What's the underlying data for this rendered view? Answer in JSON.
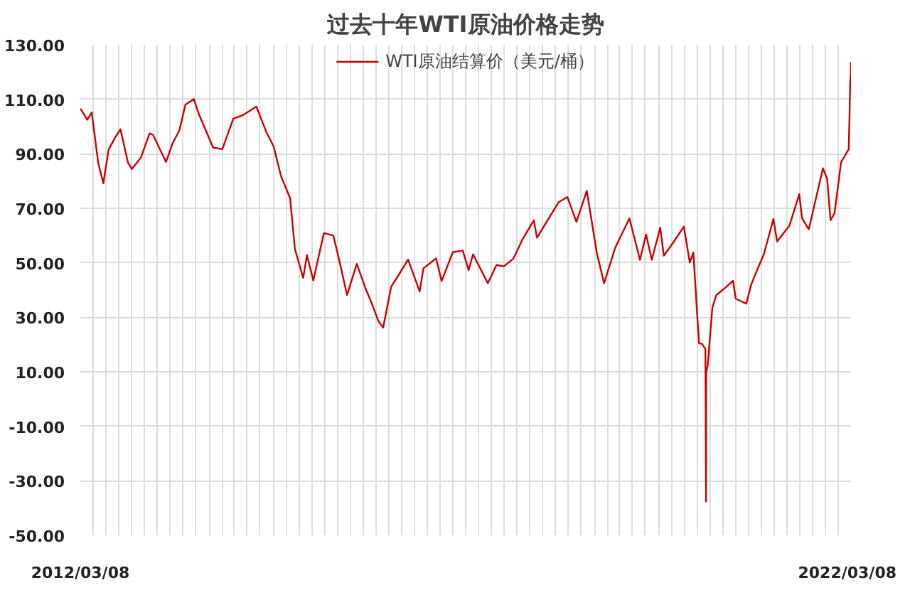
{
  "chart_data": {
    "type": "line",
    "title": "过去十年WTI原油价格走势",
    "x": [
      "2012-03-08",
      "2012-04-10",
      "2012-05-01",
      "2012-06-01",
      "2012-06-25",
      "2012-07-20",
      "2012-08-20",
      "2012-09-14",
      "2012-10-20",
      "2012-11-07",
      "2012-12-20",
      "2013-01-30",
      "2013-02-15",
      "2013-04-18",
      "2013-05-20",
      "2013-06-20",
      "2013-07-19",
      "2013-08-28",
      "2013-09-20",
      "2013-11-27",
      "2014-01-10",
      "2014-03-03",
      "2014-04-20",
      "2014-06-20",
      "2014-08-08",
      "2014-09-10",
      "2014-10-15",
      "2014-11-27",
      "2014-12-20",
      "2015-01-28",
      "2015-02-15",
      "2015-03-17",
      "2015-05-06",
      "2015-06-20",
      "2015-07-20",
      "2015-08-24",
      "2015-10-09",
      "2015-11-20",
      "2015-12-21",
      "2016-01-20",
      "2016-02-11",
      "2016-03-20",
      "2016-04-28",
      "2016-06-08",
      "2016-08-02",
      "2016-08-20",
      "2016-10-19",
      "2016-11-14",
      "2017-01-06",
      "2017-02-22",
      "2017-03-22",
      "2017-04-12",
      "2017-06-21",
      "2017-08-01",
      "2017-09-05",
      "2017-10-20",
      "2017-12-01",
      "2018-01-25",
      "2018-02-09",
      "2018-05-22",
      "2018-07-03",
      "2018-08-15",
      "2018-10-03",
      "2018-11-20",
      "2018-12-24",
      "2019-02-15",
      "2019-04-23",
      "2019-06-12",
      "2019-07-11",
      "2019-08-07",
      "2019-09-16",
      "2019-10-03",
      "2019-11-20",
      "2020-01-06",
      "2020-02-03",
      "2020-02-20",
      "2020-03-09",
      "2020-03-18",
      "2020-04-01",
      "2020-04-17",
      "2020-04-20",
      "2020-04-21",
      "2020-04-28",
      "2020-05-20",
      "2020-06-08",
      "2020-07-20",
      "2020-08-26",
      "2020-09-08",
      "2020-10-28",
      "2020-11-20",
      "2020-12-20",
      "2021-01-20",
      "2021-03-05",
      "2021-03-23",
      "2021-05-20",
      "2021-07-06",
      "2021-07-19",
      "2021-08-20",
      "2021-10-26",
      "2021-11-15",
      "2021-12-01",
      "2021-12-20",
      "2022-01-20",
      "2022-02-10",
      "2022-02-25",
      "2022-03-01",
      "2022-03-04",
      "2022-03-07",
      "2022-03-08"
    ],
    "series": [
      {
        "name": "WTI原油结算价（美元/桶）",
        "color": "#cc0000",
        "values": [
          106.6,
          102.5,
          105.2,
          86.5,
          79.2,
          91.5,
          96.0,
          99.0,
          86.7,
          84.4,
          88.6,
          97.5,
          97.0,
          87.0,
          94.0,
          98.5,
          108.0,
          110.1,
          104.7,
          92.3,
          91.7,
          102.9,
          104.3,
          107.3,
          97.7,
          92.7,
          81.8,
          73.7,
          55.0,
          44.5,
          52.8,
          43.5,
          60.9,
          60.0,
          50.2,
          38.2,
          49.6,
          40.5,
          34.7,
          28.5,
          26.2,
          41.2,
          46.0,
          51.2,
          39.5,
          48.0,
          51.6,
          43.3,
          53.9,
          54.5,
          47.3,
          53.1,
          42.5,
          49.2,
          48.7,
          51.5,
          58.4,
          65.6,
          59.2,
          72.2,
          74.1,
          65.0,
          76.4,
          53.4,
          42.5,
          55.6,
          66.3,
          51.1,
          60.4,
          51.1,
          62.9,
          52.6,
          57.8,
          63.3,
          50.1,
          53.8,
          31.1,
          20.4,
          20.3,
          18.3,
          -37.6,
          10.0,
          12.3,
          33.5,
          38.2,
          40.8,
          43.4,
          36.8,
          35.0,
          42.0,
          47.7,
          53.3,
          66.1,
          57.8,
          63.6,
          75.2,
          66.4,
          62.3,
          84.7,
          80.8,
          65.6,
          68.2,
          86.9,
          89.7,
          91.6,
          103.4,
          115.7,
          119.4,
          123.7
        ]
      }
    ],
    "xlim": [
      "2012-03-08",
      "2022-03-08"
    ],
    "xticks": [
      {
        "value": "2012-03-08",
        "label": "2012/03/08"
      },
      {
        "value": "2012-05-08",
        "label": null
      },
      {
        "value": "2012-07-08",
        "label": null
      },
      {
        "value": "2012-09-08",
        "label": null
      },
      {
        "value": "2012-11-08",
        "label": null
      },
      {
        "value": "2013-01-08",
        "label": null
      },
      {
        "value": "2013-03-08",
        "label": null
      },
      {
        "value": "2013-05-08",
        "label": null
      },
      {
        "value": "2013-07-08",
        "label": null
      },
      {
        "value": "2013-09-08",
        "label": null
      },
      {
        "value": "2013-11-08",
        "label": null
      },
      {
        "value": "2014-01-08",
        "label": null
      },
      {
        "value": "2014-03-08",
        "label": null
      },
      {
        "value": "2014-05-08",
        "label": null
      },
      {
        "value": "2014-07-08",
        "label": null
      },
      {
        "value": "2014-09-08",
        "label": null
      },
      {
        "value": "2014-11-08",
        "label": null
      },
      {
        "value": "2015-01-08",
        "label": null
      },
      {
        "value": "2015-03-08",
        "label": null
      },
      {
        "value": "2015-05-08",
        "label": null
      },
      {
        "value": "2015-07-08",
        "label": null
      },
      {
        "value": "2015-09-08",
        "label": null
      },
      {
        "value": "2015-11-08",
        "label": null
      },
      {
        "value": "2016-01-08",
        "label": null
      },
      {
        "value": "2016-03-08",
        "label": null
      },
      {
        "value": "2016-05-08",
        "label": null
      },
      {
        "value": "2016-07-08",
        "label": null
      },
      {
        "value": "2016-09-08",
        "label": null
      },
      {
        "value": "2016-11-08",
        "label": null
      },
      {
        "value": "2017-01-08",
        "label": null
      },
      {
        "value": "2017-03-08",
        "label": null
      },
      {
        "value": "2017-05-08",
        "label": null
      },
      {
        "value": "2017-07-08",
        "label": null
      },
      {
        "value": "2017-09-08",
        "label": null
      },
      {
        "value": "2017-11-08",
        "label": null
      },
      {
        "value": "2018-01-08",
        "label": null
      },
      {
        "value": "2018-03-08",
        "label": null
      },
      {
        "value": "2018-05-08",
        "label": null
      },
      {
        "value": "2018-07-08",
        "label": null
      },
      {
        "value": "2018-09-08",
        "label": null
      },
      {
        "value": "2018-11-08",
        "label": null
      },
      {
        "value": "2019-01-08",
        "label": null
      },
      {
        "value": "2019-03-08",
        "label": null
      },
      {
        "value": "2019-05-08",
        "label": null
      },
      {
        "value": "2019-07-08",
        "label": null
      },
      {
        "value": "2019-09-08",
        "label": null
      },
      {
        "value": "2019-11-08",
        "label": null
      },
      {
        "value": "2020-01-08",
        "label": null
      },
      {
        "value": "2020-03-08",
        "label": null
      },
      {
        "value": "2020-05-08",
        "label": null
      },
      {
        "value": "2020-07-08",
        "label": null
      },
      {
        "value": "2020-09-08",
        "label": null
      },
      {
        "value": "2020-11-08",
        "label": null
      },
      {
        "value": "2021-01-08",
        "label": null
      },
      {
        "value": "2021-03-08",
        "label": null
      },
      {
        "value": "2021-05-08",
        "label": null
      },
      {
        "value": "2021-07-08",
        "label": null
      },
      {
        "value": "2021-09-08",
        "label": null
      },
      {
        "value": "2021-11-08",
        "label": null
      },
      {
        "value": "2022-01-08",
        "label": null
      },
      {
        "value": "2022-03-08",
        "label": "2022/03/08"
      }
    ],
    "ylim": [
      -50,
      130
    ],
    "yticks": [
      {
        "value": -50,
        "label": "-50.00"
      },
      {
        "value": -30,
        "label": "-30.00"
      },
      {
        "value": -10,
        "label": "-10.00"
      },
      {
        "value": 10,
        "label": "10.00"
      },
      {
        "value": 30,
        "label": "30.00"
      },
      {
        "value": 50,
        "label": "50.00"
      },
      {
        "value": 70,
        "label": "70.00"
      },
      {
        "value": 90,
        "label": "90.00"
      },
      {
        "value": 110,
        "label": "110.00"
      },
      {
        "value": 130,
        "label": "130.00"
      }
    ],
    "grid": true,
    "legend": "top",
    "marker": "none",
    "line_style": "solid"
  }
}
